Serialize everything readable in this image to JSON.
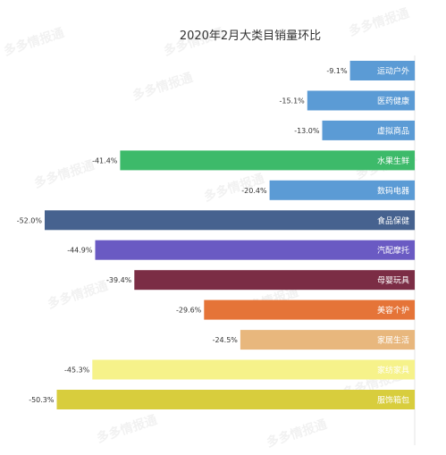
{
  "watermark": "多多情报通",
  "chart_data": {
    "type": "bar",
    "orientation": "horizontal",
    "title": "2020年2月大类目销量环比",
    "xlabel": "",
    "ylabel": "",
    "xlim": [
      -52,
      0
    ],
    "grid": false,
    "legend": "none",
    "categories": [
      "运动户外",
      "医药健康",
      "虚拟商品",
      "水果生鲜",
      "数码电器",
      "食品保健",
      "汽配摩托",
      "母婴玩具",
      "美容个护",
      "家居生活",
      "家纺家具",
      "服饰箱包"
    ],
    "values": [
      -9.1,
      -15.1,
      -13.0,
      -41.4,
      -20.4,
      -52.0,
      -44.9,
      -39.4,
      -29.6,
      -24.5,
      -45.3,
      -50.3
    ],
    "value_labels": [
      "-9.1%",
      "-15.1%",
      "-13.0%",
      "-41.4%",
      "-20.4%",
      "-52.0%",
      "-44.9%",
      "-39.4%",
      "-29.6%",
      "-24.5%",
      "-45.3%",
      "-50.3%"
    ],
    "colors": [
      "#5b9bd5",
      "#5b9bd5",
      "#5b9bd5",
      "#3dba6a",
      "#5b9bd5",
      "#46628f",
      "#6a5ac3",
      "#7b2d45",
      "#e57438",
      "#e8b77d",
      "#f6f28a",
      "#d8cd3d"
    ]
  }
}
